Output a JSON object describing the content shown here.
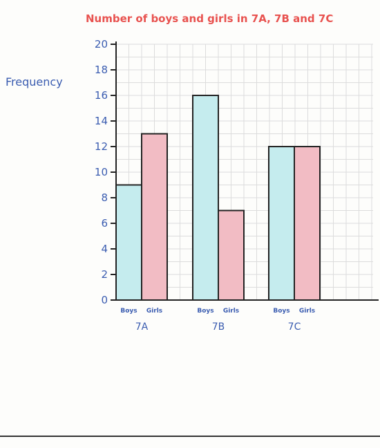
{
  "chart_data": {
    "type": "bar",
    "title": "Number of boys and girls in 7A, 7B and 7C",
    "xlabel": "",
    "ylabel": "Frequency",
    "categories": [
      "7A",
      "7B",
      "7C"
    ],
    "subcategory_labels": [
      "Boys",
      "Girls"
    ],
    "series": [
      {
        "name": "Boys",
        "values": [
          9,
          16,
          12
        ]
      },
      {
        "name": "Girls",
        "values": [
          13,
          7,
          12
        ]
      }
    ],
    "ylim": [
      0,
      20
    ],
    "yticks": [
      0,
      2,
      4,
      6,
      8,
      10,
      12,
      14,
      16,
      18,
      20
    ],
    "grid": true,
    "legend": "none"
  },
  "colors": {
    "boys": "#c5ecee",
    "girls": "#f2bcc4",
    "title": "#e8524f",
    "axis_text": "#3a5cb0",
    "grid": "#dcdcdc",
    "bar_outline": "#222222"
  }
}
